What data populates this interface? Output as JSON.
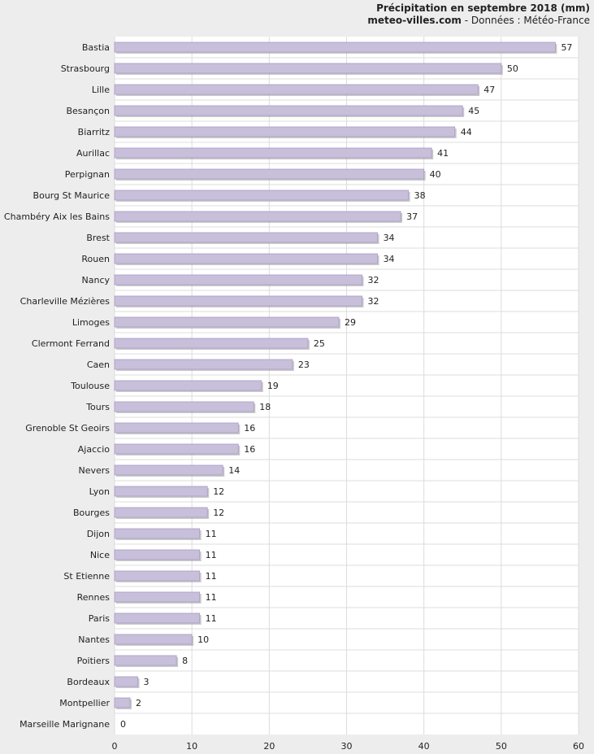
{
  "header": {
    "title": "Précipitation en septembre 2018 (mm)",
    "site": "meteo-villes.com",
    "source": " - Données : Météo-France"
  },
  "colors": {
    "bar_fill": "#c8bfdb",
    "bar_edge": "#a99cc4",
    "bar_shadow": "#9e9e9e",
    "plot_bg": "#ffffff",
    "grid": "#dcdcdc"
  },
  "chart_data": {
    "type": "bar",
    "orientation": "horizontal",
    "title": "Précipitation en septembre 2018 (mm)",
    "xlabel": "",
    "ylabel": "",
    "xlim": [
      0,
      60
    ],
    "xticks": [
      0,
      10,
      20,
      30,
      40,
      50,
      60
    ],
    "grid": true,
    "categories": [
      "Bastia",
      "Strasbourg",
      "Lille",
      "Besançon",
      "Biarritz",
      "Aurillac",
      "Perpignan",
      "Bourg St Maurice",
      "Chambéry Aix les Bains",
      "Brest",
      "Rouen",
      "Nancy",
      "Charleville Mézières",
      "Limoges",
      "Clermont Ferrand",
      "Caen",
      "Toulouse",
      "Tours",
      "Grenoble St Geoirs",
      "Ajaccio",
      "Nevers",
      "Lyon",
      "Bourges",
      "Dijon",
      "Nice",
      "St Etienne",
      "Rennes",
      "Paris",
      "Nantes",
      "Poitiers",
      "Bordeaux",
      "Montpellier",
      "Marseille Marignane"
    ],
    "values": [
      57,
      50,
      47,
      45,
      44,
      41,
      40,
      38,
      37,
      34,
      34,
      32,
      32,
      29,
      25,
      23,
      19,
      18,
      16,
      16,
      14,
      12,
      12,
      11,
      11,
      11,
      11,
      11,
      10,
      8,
      3,
      2,
      0
    ]
  }
}
